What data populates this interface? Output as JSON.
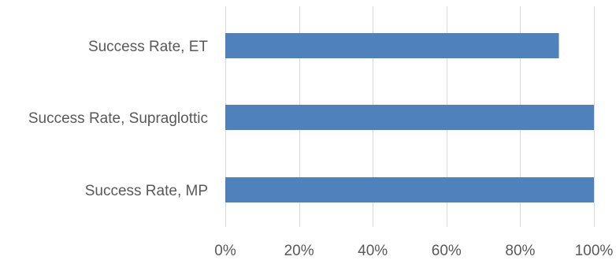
{
  "chart_data": {
    "type": "bar",
    "orientation": "horizontal",
    "title": "",
    "xlabel": "",
    "ylabel": "",
    "categories": [
      "Success Rate, ET",
      "Success Rate, Supraglottic",
      "Success Rate, MP"
    ],
    "values": [
      0.905,
      1.0,
      1.0
    ],
    "xlim": [
      0,
      1
    ],
    "xticks": [
      0,
      0.2,
      0.4,
      0.6,
      0.8,
      1.0
    ],
    "xtick_labels": [
      "0%",
      "20%",
      "40%",
      "60%",
      "80%",
      "100%"
    ],
    "grid": "vertical",
    "legend": "none",
    "bar_color": "#4f81bd"
  }
}
